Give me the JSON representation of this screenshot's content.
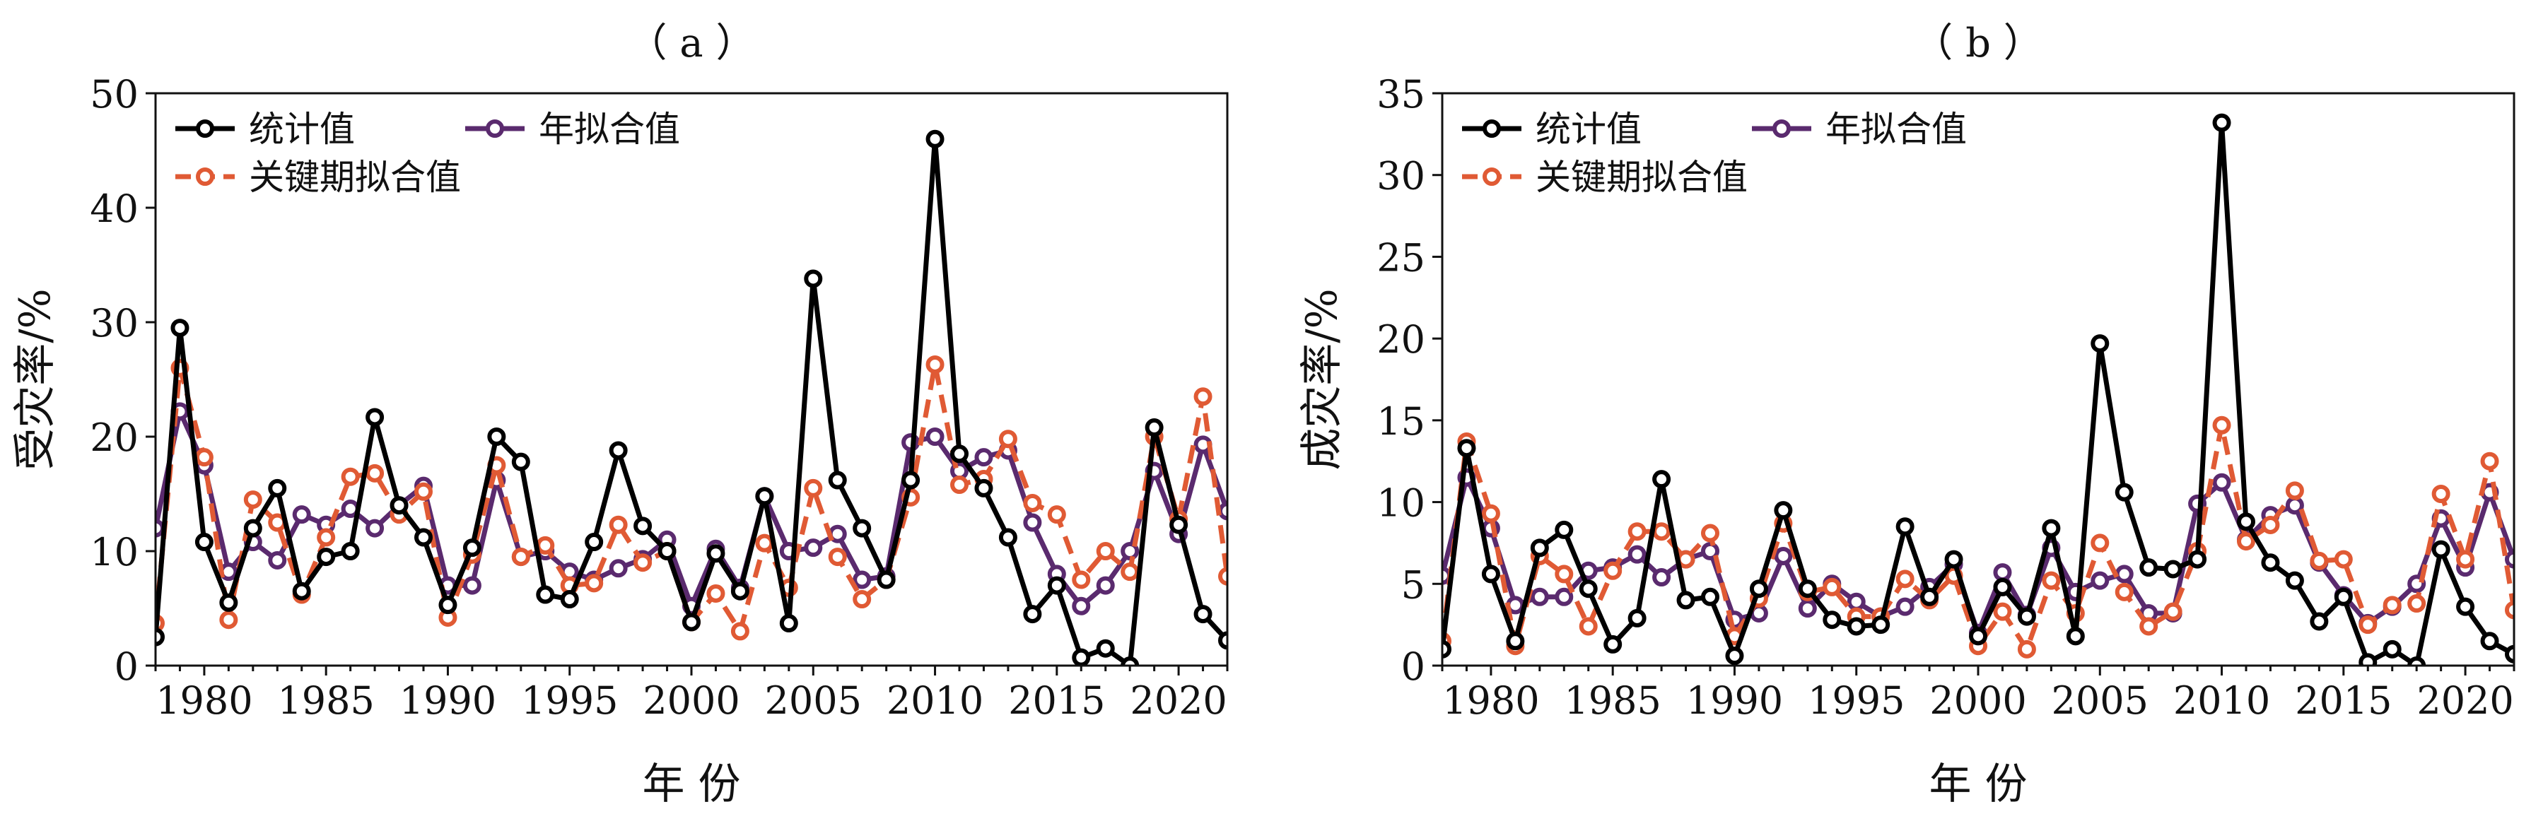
{
  "chart_data": [
    {
      "panel_label": "（ a ）",
      "type": "line",
      "xlabel": "年 份",
      "ylabel": "受灾率/%",
      "xlim": [
        1978,
        2022
      ],
      "ylim": [
        0,
        50
      ],
      "yticks": [
        0,
        10,
        20,
        30,
        40,
        50
      ],
      "xticks": [
        1980,
        1985,
        1990,
        1995,
        2000,
        2005,
        2010,
        2015,
        2020
      ],
      "legend_position": "top-left",
      "x": [
        1978,
        1979,
        1980,
        1981,
        1982,
        1983,
        1984,
        1985,
        1986,
        1987,
        1988,
        1989,
        1990,
        1991,
        1992,
        1993,
        1994,
        1995,
        1996,
        1997,
        1998,
        1999,
        2000,
        2001,
        2002,
        2003,
        2004,
        2005,
        2006,
        2007,
        2008,
        2009,
        2010,
        2011,
        2012,
        2013,
        2014,
        2015,
        2016,
        2017,
        2018,
        2019,
        2020,
        2021,
        2022
      ],
      "series": [
        {
          "name": "统计值",
          "color": "#000000",
          "dashed": false,
          "values": [
            2.5,
            29.5,
            10.8,
            5.5,
            12,
            15.5,
            6.5,
            9.5,
            10,
            21.7,
            14,
            11.2,
            5.3,
            10.3,
            20,
            17.8,
            6.2,
            5.8,
            10.8,
            18.8,
            12.2,
            10,
            3.8,
            9.8,
            6.5,
            14.8,
            3.7,
            33.8,
            16.2,
            12,
            7.5,
            16.2,
            46,
            18.5,
            15.5,
            11.2,
            4.5,
            7,
            0.7,
            1.5,
            0,
            20.8,
            12.3,
            4.5,
            2.2
          ]
        },
        {
          "name": "关键期拟合值",
          "color": "#e05a34",
          "dashed": true,
          "values": [
            3.7,
            26,
            18.2,
            4,
            14.5,
            12.5,
            6.2,
            11.2,
            16.5,
            16.8,
            13.2,
            15.2,
            4.2,
            9.7,
            17.5,
            9.5,
            10.5,
            7,
            7.2,
            12.3,
            9,
            10,
            3.8,
            6.3,
            3,
            10.7,
            6.8,
            15.5,
            9.5,
            5.8,
            7.5,
            14.7,
            26.3,
            15.8,
            16.3,
            19.8,
            14.2,
            13.2,
            7.5,
            10,
            8.2,
            20,
            12.8,
            23.5,
            7.8
          ]
        },
        {
          "name": "年拟合值",
          "color": "#5a2a6e",
          "dashed": false,
          "values": [
            12,
            22.2,
            17.5,
            8.2,
            10.8,
            9.2,
            13.2,
            12.3,
            13.7,
            12,
            14,
            15.7,
            7,
            7,
            16.2,
            9.5,
            10,
            8.2,
            7.5,
            8.5,
            9.3,
            11,
            5.2,
            10.2,
            6.8,
            14.8,
            10,
            10.3,
            11.5,
            7.5,
            7.8,
            19.5,
            20,
            17,
            18.2,
            18.8,
            12.5,
            8,
            5.2,
            7,
            10,
            17,
            11.5,
            19.3,
            13.5
          ]
        }
      ]
    },
    {
      "panel_label": "（ b ）",
      "type": "line",
      "xlabel": "年 份",
      "ylabel": "成灾率/%",
      "xlim": [
        1978,
        2022
      ],
      "ylim": [
        0,
        35
      ],
      "yticks": [
        0,
        5,
        10,
        15,
        20,
        25,
        30,
        35
      ],
      "xticks": [
        1980,
        1985,
        1990,
        1995,
        2000,
        2005,
        2010,
        2015,
        2020
      ],
      "legend_position": "top-left",
      "x": [
        1978,
        1979,
        1980,
        1981,
        1982,
        1983,
        1984,
        1985,
        1986,
        1987,
        1988,
        1989,
        1990,
        1991,
        1992,
        1993,
        1994,
        1995,
        1996,
        1997,
        1998,
        1999,
        2000,
        2001,
        2002,
        2003,
        2004,
        2005,
        2006,
        2007,
        2008,
        2009,
        2010,
        2011,
        2012,
        2013,
        2014,
        2015,
        2016,
        2017,
        2018,
        2019,
        2020,
        2021,
        2022
      ],
      "series": [
        {
          "name": "统计值",
          "color": "#000000",
          "dashed": false,
          "values": [
            1,
            13.3,
            5.6,
            1.5,
            7.2,
            8.3,
            4.7,
            1.3,
            2.9,
            11.4,
            4,
            4.2,
            0.6,
            4.7,
            9.5,
            4.7,
            2.8,
            2.4,
            2.5,
            8.5,
            4.2,
            6.5,
            1.8,
            4.8,
            3,
            8.4,
            1.8,
            19.7,
            10.6,
            6,
            5.9,
            6.5,
            33.2,
            8.8,
            6.3,
            5.2,
            2.7,
            4.2,
            0.2,
            1,
            0,
            7.1,
            3.6,
            1.5,
            0.7
          ]
        },
        {
          "name": "关键期拟合值",
          "color": "#e05a34",
          "dashed": true,
          "values": [
            1.5,
            13.7,
            9.3,
            1.2,
            6.7,
            5.6,
            2.4,
            5.8,
            8.2,
            8.2,
            6.5,
            8.1,
            1.8,
            4.1,
            8.7,
            4.5,
            4.8,
            3,
            3,
            5.3,
            4,
            5.5,
            1.2,
            3.3,
            1,
            5.2,
            3.2,
            7.5,
            4.5,
            2.4,
            3.3,
            7,
            14.7,
            7.6,
            8.6,
            10.7,
            6.4,
            6.5,
            2.5,
            3.7,
            3.8,
            10.5,
            6.5,
            12.5,
            3.4
          ]
        },
        {
          "name": "年拟合值",
          "color": "#5a2a6e",
          "dashed": false,
          "values": [
            5.5,
            11.5,
            8.4,
            3.7,
            4.2,
            4.2,
            5.8,
            6,
            6.8,
            5.4,
            6.5,
            7,
            2.8,
            3.2,
            6.7,
            3.5,
            5,
            3.9,
            3,
            3.6,
            4.8,
            6.2,
            2,
            5.7,
            3.1,
            7.2,
            4.5,
            5.2,
            5.6,
            3.2,
            3.2,
            9.9,
            11.2,
            7.7,
            9.2,
            9.8,
            6.3,
            4.3,
            2.6,
            3.6,
            5,
            9,
            6,
            10.6,
            6.5
          ]
        }
      ]
    }
  ]
}
